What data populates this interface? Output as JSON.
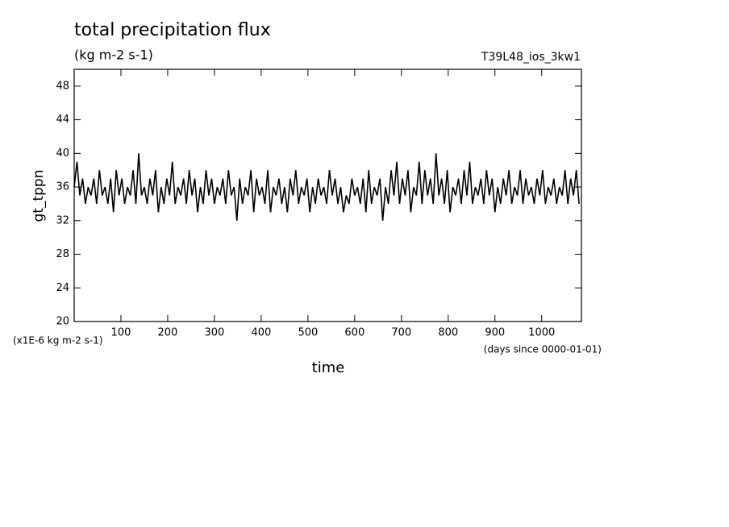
{
  "chart_data": {
    "type": "line",
    "title": "total precipitation flux",
    "subtitle": "(kg m-2 s-1)",
    "annotation": "T39L48_ios_3kw1",
    "ylabel": "gt_tppn",
    "yunit": "(x1E-6 kg m-2 s-1)",
    "xlabel": "time",
    "xunit": "(days since 0000-01-01)",
    "color": "#000000",
    "xlim": [
      0,
      1085
    ],
    "ylim": [
      20,
      50
    ],
    "xticks": [
      100,
      200,
      300,
      400,
      500,
      600,
      700,
      800,
      900,
      1000
    ],
    "yticks": [
      20,
      24,
      28,
      32,
      36,
      40,
      44,
      48
    ],
    "x": [
      0,
      6,
      12,
      18,
      24,
      30,
      36,
      42,
      48,
      54,
      60,
      66,
      72,
      78,
      84,
      90,
      96,
      102,
      108,
      114,
      120,
      126,
      132,
      138,
      144,
      150,
      156,
      162,
      168,
      174,
      180,
      186,
      192,
      198,
      204,
      210,
      216,
      222,
      228,
      234,
      240,
      246,
      252,
      258,
      264,
      270,
      276,
      282,
      288,
      294,
      300,
      306,
      312,
      318,
      324,
      330,
      336,
      342,
      348,
      354,
      360,
      366,
      372,
      378,
      384,
      390,
      396,
      402,
      408,
      414,
      420,
      426,
      432,
      438,
      444,
      450,
      456,
      462,
      468,
      474,
      480,
      486,
      492,
      498,
      504,
      510,
      516,
      522,
      528,
      534,
      540,
      546,
      552,
      558,
      564,
      570,
      576,
      582,
      588,
      594,
      600,
      606,
      612,
      618,
      624,
      630,
      636,
      642,
      648,
      654,
      660,
      666,
      672,
      678,
      684,
      690,
      696,
      702,
      708,
      714,
      720,
      726,
      732,
      738,
      744,
      750,
      756,
      762,
      768,
      774,
      780,
      786,
      792,
      798,
      804,
      810,
      816,
      822,
      828,
      834,
      840,
      846,
      852,
      858,
      864,
      870,
      876,
      882,
      888,
      894,
      900,
      906,
      912,
      918,
      924,
      930,
      936,
      942,
      948,
      954,
      960,
      966,
      972,
      978,
      984,
      990,
      996,
      1002,
      1008,
      1014,
      1020,
      1026,
      1032,
      1038,
      1044,
      1050,
      1056,
      1062,
      1068,
      1074,
      1080
    ],
    "values": [
      36,
      39,
      35,
      37,
      34,
      36,
      35,
      37,
      34,
      38,
      35,
      36,
      34,
      37,
      33,
      38,
      35,
      37,
      34,
      36,
      35,
      38,
      34,
      40,
      35,
      36,
      34,
      37,
      35,
      38,
      33,
      36,
      34,
      37,
      35,
      39,
      34,
      36,
      35,
      37,
      34,
      38,
      35,
      37,
      33,
      36,
      34,
      38,
      35,
      37,
      34,
      36,
      35,
      37,
      34,
      38,
      35,
      36,
      32,
      37,
      34,
      36,
      35,
      38,
      33,
      37,
      35,
      36,
      34,
      38,
      33,
      36,
      35,
      37,
      34,
      36,
      33,
      37,
      35,
      38,
      34,
      36,
      35,
      37,
      33,
      36,
      34,
      37,
      35,
      36,
      34,
      38,
      35,
      37,
      34,
      36,
      33,
      35,
      34,
      37,
      35,
      36,
      34,
      37,
      33,
      38,
      34,
      36,
      35,
      37,
      32,
      36,
      34,
      38,
      35,
      39,
      34,
      37,
      35,
      38,
      33,
      36,
      35,
      39,
      34,
      38,
      35,
      37,
      34,
      40,
      35,
      37,
      34,
      38,
      33,
      36,
      35,
      37,
      34,
      38,
      35,
      39,
      34,
      36,
      35,
      37,
      34,
      38,
      35,
      37,
      33,
      36,
      34,
      37,
      35,
      38,
      34,
      36,
      35,
      38,
      34,
      37,
      35,
      36,
      34,
      37,
      35,
      38,
      34,
      36,
      35,
      37,
      34,
      36,
      35,
      38,
      34,
      37,
      35,
      38,
      34
    ]
  }
}
